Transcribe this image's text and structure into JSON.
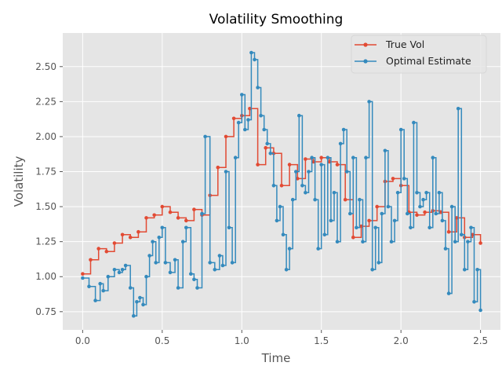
{
  "chart_data": {
    "type": "line",
    "title": "Volatility Smoothing",
    "xlabel": "Time",
    "ylabel": "Volatility",
    "xlim": [
      -0.125,
      2.625
    ],
    "ylim": [
      0.62,
      2.74
    ],
    "xticks": [
      0.0,
      0.5,
      1.0,
      1.5,
      2.0,
      2.5
    ],
    "xtick_labels": [
      "0.0",
      "0.5",
      "1.0",
      "1.5",
      "2.0",
      "2.5"
    ],
    "yticks": [
      0.75,
      1.0,
      1.25,
      1.5,
      1.75,
      2.0,
      2.25,
      2.5
    ],
    "ytick_labels": [
      "0.75",
      "1.00",
      "1.25",
      "1.50",
      "1.75",
      "2.00",
      "2.25",
      "2.50"
    ],
    "grid": true,
    "legend_position": "top-right",
    "step_style": "post",
    "series": [
      {
        "name": "True Vol",
        "color": "#E24A33",
        "x": [
          0.0,
          0.05,
          0.1,
          0.15,
          0.2,
          0.25,
          0.3,
          0.35,
          0.4,
          0.45,
          0.5,
          0.55,
          0.6,
          0.65,
          0.7,
          0.75,
          0.8,
          0.85,
          0.9,
          0.95,
          1.0,
          1.05,
          1.1,
          1.15,
          1.2,
          1.25,
          1.3,
          1.35,
          1.4,
          1.45,
          1.5,
          1.55,
          1.6,
          1.65,
          1.7,
          1.75,
          1.8,
          1.85,
          1.9,
          1.95,
          2.0,
          2.05,
          2.1,
          2.15,
          2.2,
          2.25,
          2.3,
          2.35,
          2.4,
          2.45,
          2.5
        ],
        "values": [
          1.02,
          1.12,
          1.2,
          1.18,
          1.24,
          1.3,
          1.28,
          1.32,
          1.42,
          1.44,
          1.5,
          1.46,
          1.42,
          1.4,
          1.48,
          1.44,
          1.58,
          1.78,
          2.0,
          2.13,
          2.15,
          2.2,
          1.8,
          1.92,
          1.88,
          1.65,
          1.8,
          1.7,
          1.84,
          1.82,
          1.85,
          1.82,
          1.8,
          1.55,
          1.28,
          1.36,
          1.4,
          1.5,
          1.68,
          1.7,
          1.65,
          1.46,
          1.44,
          1.46,
          1.47,
          1.46,
          1.32,
          1.42,
          1.28,
          1.3,
          1.24
        ]
      },
      {
        "name": "Optimal Estimate",
        "color": "#348ABD",
        "x": [
          0.0,
          0.04,
          0.08,
          0.11,
          0.13,
          0.16,
          0.2,
          0.23,
          0.25,
          0.27,
          0.3,
          0.32,
          0.34,
          0.36,
          0.38,
          0.4,
          0.42,
          0.44,
          0.46,
          0.48,
          0.5,
          0.52,
          0.55,
          0.58,
          0.6,
          0.63,
          0.65,
          0.68,
          0.7,
          0.72,
          0.75,
          0.77,
          0.8,
          0.83,
          0.86,
          0.88,
          0.9,
          0.92,
          0.94,
          0.96,
          0.98,
          1.0,
          1.02,
          1.04,
          1.06,
          1.08,
          1.1,
          1.12,
          1.14,
          1.16,
          1.18,
          1.2,
          1.22,
          1.24,
          1.26,
          1.28,
          1.3,
          1.32,
          1.34,
          1.36,
          1.38,
          1.4,
          1.42,
          1.44,
          1.46,
          1.48,
          1.5,
          1.52,
          1.54,
          1.56,
          1.58,
          1.6,
          1.62,
          1.64,
          1.66,
          1.68,
          1.7,
          1.72,
          1.74,
          1.76,
          1.78,
          1.8,
          1.82,
          1.84,
          1.86,
          1.88,
          1.9,
          1.92,
          1.94,
          1.96,
          1.98,
          2.0,
          2.02,
          2.04,
          2.06,
          2.08,
          2.1,
          2.12,
          2.14,
          2.16,
          2.18,
          2.2,
          2.22,
          2.24,
          2.26,
          2.28,
          2.3,
          2.32,
          2.34,
          2.36,
          2.38,
          2.4,
          2.42,
          2.44,
          2.46,
          2.48,
          2.5
        ],
        "values": [
          0.99,
          0.93,
          0.83,
          0.95,
          0.9,
          1.0,
          1.05,
          1.03,
          1.05,
          1.08,
          0.92,
          0.72,
          0.82,
          0.85,
          0.8,
          1.0,
          1.15,
          1.25,
          1.1,
          1.28,
          1.35,
          1.1,
          1.03,
          1.12,
          0.92,
          1.25,
          1.35,
          1.02,
          0.98,
          0.92,
          1.45,
          2.0,
          1.1,
          1.05,
          1.15,
          1.08,
          1.75,
          1.35,
          1.1,
          1.85,
          2.1,
          2.3,
          2.05,
          2.12,
          2.6,
          2.55,
          2.35,
          2.15,
          2.05,
          1.95,
          1.88,
          1.65,
          1.4,
          1.5,
          1.3,
          1.05,
          1.2,
          1.55,
          1.75,
          2.15,
          1.65,
          1.6,
          1.75,
          1.85,
          1.55,
          1.2,
          1.8,
          1.3,
          1.85,
          1.4,
          1.6,
          1.25,
          1.95,
          2.05,
          1.75,
          1.45,
          1.85,
          1.35,
          1.55,
          1.25,
          1.85,
          2.25,
          1.05,
          1.35,
          1.1,
          1.45,
          1.9,
          1.5,
          1.25,
          1.4,
          1.6,
          2.05,
          1.7,
          1.45,
          1.35,
          2.1,
          1.6,
          1.5,
          1.55,
          1.6,
          1.35,
          1.85,
          1.45,
          1.6,
          1.4,
          1.2,
          0.88,
          1.5,
          1.25,
          2.2,
          1.3,
          1.05,
          1.25,
          1.35,
          0.82,
          1.05,
          0.76
        ]
      }
    ]
  }
}
